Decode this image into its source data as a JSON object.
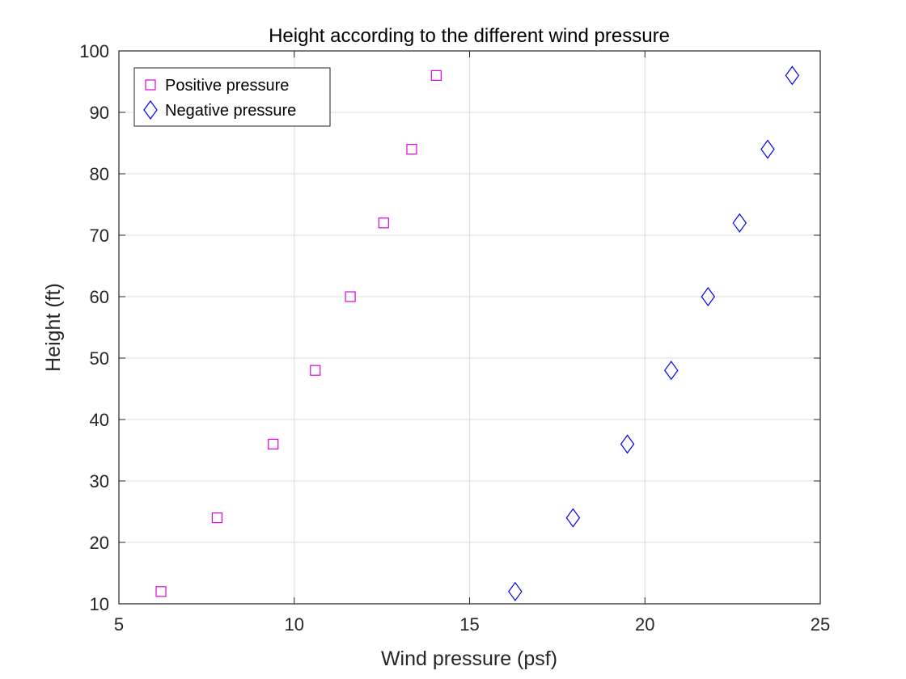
{
  "chart_data": {
    "type": "scatter",
    "title": "Height according to the different wind pressure",
    "xlabel": "Wind pressure (psf)",
    "ylabel": "Height (ft)",
    "xlim": [
      5,
      25
    ],
    "ylim": [
      10,
      100
    ],
    "xticks": [
      5,
      10,
      15,
      20,
      25
    ],
    "yticks": [
      10,
      20,
      30,
      40,
      50,
      60,
      70,
      80,
      90,
      100
    ],
    "grid": true,
    "legend_position": "top-left",
    "series": [
      {
        "name": "Positive pressure",
        "marker": "square",
        "color": "#e000e0",
        "points": [
          {
            "x": 6.2,
            "y": 12
          },
          {
            "x": 7.8,
            "y": 24
          },
          {
            "x": 9.4,
            "y": 36
          },
          {
            "x": 10.6,
            "y": 48
          },
          {
            "x": 11.6,
            "y": 60
          },
          {
            "x": 12.55,
            "y": 72
          },
          {
            "x": 13.35,
            "y": 84
          },
          {
            "x": 14.05,
            "y": 96
          }
        ]
      },
      {
        "name": "Negative pressure",
        "marker": "diamond",
        "color": "#0000ee",
        "points": [
          {
            "x": 16.3,
            "y": 12
          },
          {
            "x": 17.95,
            "y": 24
          },
          {
            "x": 19.5,
            "y": 36
          },
          {
            "x": 20.75,
            "y": 48
          },
          {
            "x": 21.8,
            "y": 60
          },
          {
            "x": 22.7,
            "y": 72
          },
          {
            "x": 23.5,
            "y": 84
          },
          {
            "x": 24.2,
            "y": 96
          }
        ]
      }
    ]
  }
}
